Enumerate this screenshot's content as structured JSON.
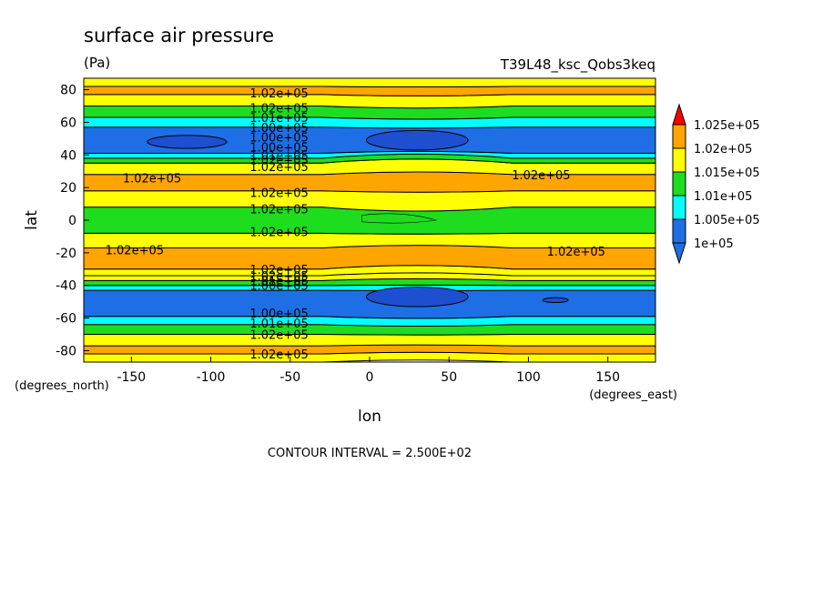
{
  "chart_data": {
    "type": "heatmap",
    "title": "surface air pressure",
    "units": "(Pa)",
    "run_label": "T39L48_ksc_Qobs3keq",
    "xlabel": "lon",
    "ylabel": "lat",
    "x_units": "(degrees_east)",
    "y_units": "(degrees_north)",
    "xlim": [
      -180,
      180
    ],
    "ylim": [
      -87,
      87
    ],
    "x_ticks": [
      "-150",
      "-100",
      "-50",
      "0",
      "50",
      "100",
      "150"
    ],
    "y_ticks": [
      "80",
      "60",
      "40",
      "20",
      "0",
      "-20",
      "-40",
      "-60",
      "-80"
    ],
    "footer": "CONTOUR INTERVAL = 2.500E+02",
    "colorbar": {
      "colors": [
        "#1e6fe6",
        "#00ffff",
        "#1edc1e",
        "#ffff00",
        "#ffa500",
        "#ff0000"
      ],
      "labels": [
        "1e+05",
        "1.005e+05",
        "1.01e+05",
        "1.015e+05",
        "1.02e+05",
        "1.025e+05"
      ]
    },
    "bands": [
      {
        "lat_from": -87,
        "lat_to": -82,
        "color": "#ffff00"
      },
      {
        "lat_from": -82,
        "lat_to": -77,
        "color": "#ffa500"
      },
      {
        "lat_from": -77,
        "lat_to": -70,
        "color": "#ffff00"
      },
      {
        "lat_from": -70,
        "lat_to": -64,
        "color": "#1edc1e"
      },
      {
        "lat_from": -64,
        "lat_to": -59,
        "color": "#00ffff"
      },
      {
        "lat_from": -59,
        "lat_to": -43,
        "color": "#1e6fe6"
      },
      {
        "lat_from": -43,
        "lat_to": -40,
        "color": "#00ffff"
      },
      {
        "lat_from": -40,
        "lat_to": -37,
        "color": "#1edc1e"
      },
      {
        "lat_from": -37,
        "lat_to": -34,
        "color": "#ffff00"
      },
      {
        "lat_from": -34,
        "lat_to": -30,
        "color": "#ffff00"
      },
      {
        "lat_from": -30,
        "lat_to": -17,
        "color": "#ffa500"
      },
      {
        "lat_from": -17,
        "lat_to": -8,
        "color": "#ffff00"
      },
      {
        "lat_from": -8,
        "lat_to": 8,
        "color": "#1edc1e"
      },
      {
        "lat_from": 8,
        "lat_to": 18,
        "color": "#ffff00"
      },
      {
        "lat_from": 18,
        "lat_to": 28,
        "color": "#ffa500"
      },
      {
        "lat_from": 28,
        "lat_to": 35,
        "color": "#ffff00"
      },
      {
        "lat_from": 35,
        "lat_to": 38,
        "color": "#1edc1e"
      },
      {
        "lat_from": 38,
        "lat_to": 41,
        "color": "#00ffff"
      },
      {
        "lat_from": 41,
        "lat_to": 57,
        "color": "#1e6fe6"
      },
      {
        "lat_from": 57,
        "lat_to": 63,
        "color": "#00ffff"
      },
      {
        "lat_from": 63,
        "lat_to": 70,
        "color": "#1edc1e"
      },
      {
        "lat_from": 70,
        "lat_to": 77,
        "color": "#ffff00"
      },
      {
        "lat_from": 77,
        "lat_to": 82,
        "color": "#ffa500"
      },
      {
        "lat_from": 82,
        "lat_to": 87,
        "color": "#ffff00"
      }
    ],
    "contour_labels": [
      {
        "lon": -57,
        "lat": 78,
        "text": "1.02e+05"
      },
      {
        "lon": -57,
        "lat": 69,
        "text": "1.02e+05"
      },
      {
        "lon": -57,
        "lat": 63,
        "text": "1.01e+05"
      },
      {
        "lon": -57,
        "lat": 57,
        "text": "1.00e+05"
      },
      {
        "lon": -57,
        "lat": 51,
        "text": "1.00e+05"
      },
      {
        "lon": -57,
        "lat": 45,
        "text": "1.00e+05"
      },
      {
        "lon": -57,
        "lat": 40,
        "text": "1.01e+05"
      },
      {
        "lon": -57,
        "lat": 37,
        "text": "1.02e+05"
      },
      {
        "lon": -57,
        "lat": 33,
        "text": "1.02e+05"
      },
      {
        "lon": -137,
        "lat": 26,
        "text": "1.02e+05"
      },
      {
        "lon": 108,
        "lat": 28,
        "text": "1.02e+05"
      },
      {
        "lon": -57,
        "lat": 17,
        "text": "1.02e+05"
      },
      {
        "lon": -57,
        "lat": 7,
        "text": "1.02e+05"
      },
      {
        "lon": -57,
        "lat": -7,
        "text": "1.02e+05"
      },
      {
        "lon": -148,
        "lat": -18,
        "text": "1.02e+05"
      },
      {
        "lon": 130,
        "lat": -19,
        "text": "1.02e+05"
      },
      {
        "lon": -57,
        "lat": -30,
        "text": "1.02e+05"
      },
      {
        "lon": -57,
        "lat": -34,
        "text": "1.02e+05"
      },
      {
        "lon": -57,
        "lat": -37,
        "text": "1.01e+05"
      },
      {
        "lon": -57,
        "lat": -40,
        "text": "1.00e+05"
      },
      {
        "lon": -57,
        "lat": -57,
        "text": "1.00e+05"
      },
      {
        "lon": -57,
        "lat": -63,
        "text": "1.01e+05"
      },
      {
        "lon": -57,
        "lat": -70,
        "text": "1.02e+05"
      },
      {
        "lon": -57,
        "lat": -82,
        "text": "1.02e+05"
      }
    ],
    "dark_cells": [
      {
        "lon": 30,
        "lat": 49,
        "rlon": 32,
        "rlat": 6,
        "color": "#1e4fd0"
      },
      {
        "lon": -115,
        "lat": 48,
        "rlon": 25,
        "rlat": 4,
        "color": "#1e4fd0"
      },
      {
        "lon": 30,
        "lat": -47,
        "rlon": 32,
        "rlat": 6,
        "color": "#1e4fd0"
      },
      {
        "lon": 117,
        "lat": -49,
        "rlon": 8,
        "rlat": 1.5,
        "color": "#1e4fd0"
      }
    ]
  }
}
